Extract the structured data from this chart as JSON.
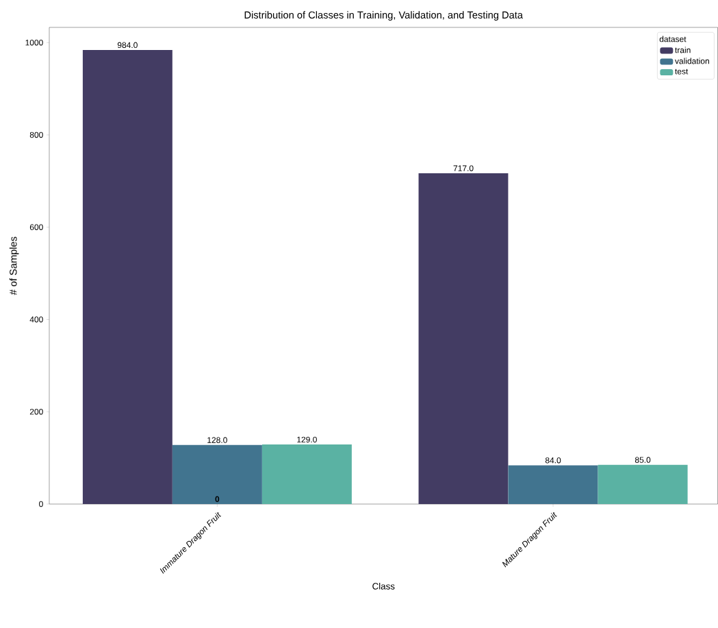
{
  "chart_data": {
    "type": "bar",
    "title": "Distribution of Classes in Training, Validation, and Testing Data",
    "xlabel": "Class",
    "ylabel": "# of Samples",
    "legend_title": "dataset",
    "categories": [
      "Immature Dragon Fruit",
      "Mature Dragon Fruit"
    ],
    "series": [
      {
        "name": "train",
        "color": "#433c63",
        "values": [
          984,
          717
        ],
        "value_labels": [
          "984.0",
          "717.0"
        ]
      },
      {
        "name": "validation",
        "color": "#41748f",
        "values": [
          128,
          84
        ],
        "value_labels": [
          "128.0",
          "84.0"
        ]
      },
      {
        "name": "test",
        "color": "#5ab2a3",
        "values": [
          129,
          85
        ],
        "value_labels": [
          "129.0",
          "85.0"
        ]
      }
    ],
    "annotations": [
      {
        "text": "0",
        "x": "Immature Dragon Fruit",
        "y": 0
      }
    ],
    "ylim": [
      0,
      1033
    ],
    "yticks": [
      0,
      200,
      400,
      600,
      800,
      1000
    ],
    "grid": false,
    "legend": "top right"
  }
}
